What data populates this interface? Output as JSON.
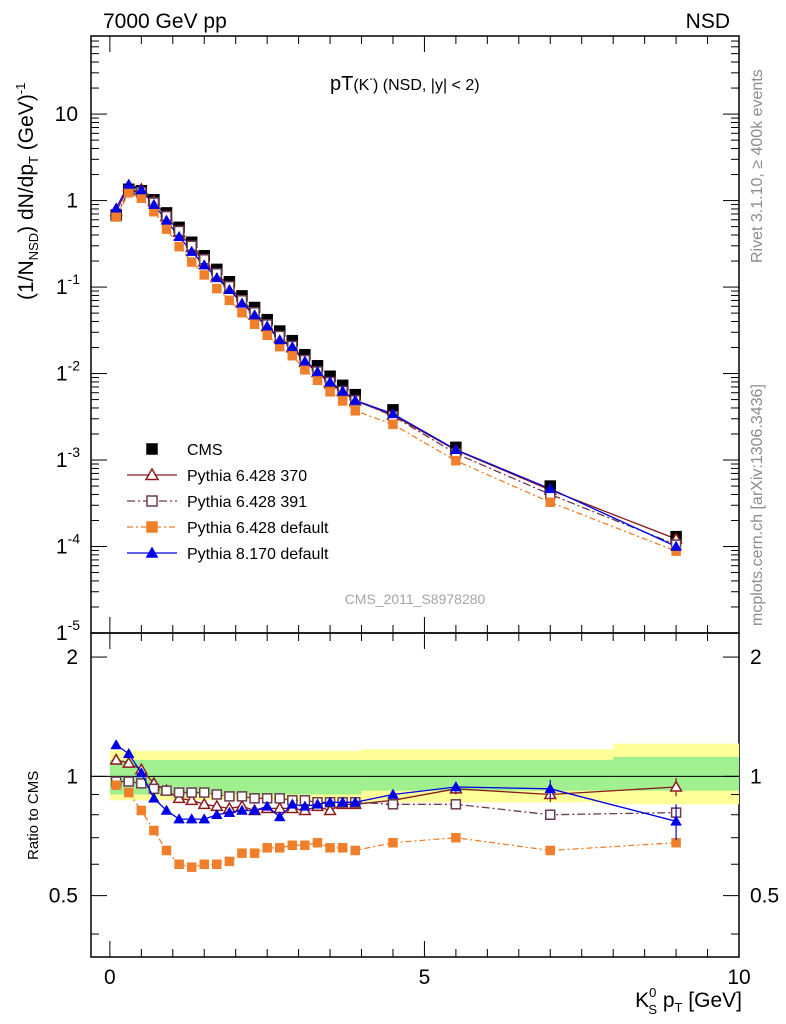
{
  "header": {
    "left": "7000 GeV pp",
    "right": "NSD"
  },
  "side_text": {
    "upper": "Rivet 3.1.10, ≥ 400k events",
    "lower": "mcplots.cern.ch [arXiv:1306.3436]"
  },
  "chart_data": {
    "type": "scatter",
    "title": "pT(K¯) (NSD, |y| < 2)",
    "title_parts": {
      "main": "pT",
      "paren": "(K",
      "sup": "-",
      "close": ")",
      "rest": " (NSD, |y| < 2)"
    },
    "watermark": "CMS_2011_S8978280",
    "xlabel": "K_S^0 p_T [GeV]",
    "xlabel_parts": {
      "k": "K",
      "sup": "0",
      "sub": "S",
      "p": " p",
      "psub": "T",
      "unit": " [GeV]"
    },
    "ylabel_main": "(1/N_NSD) dN/dp_T (GeV)^-1",
    "ylabel_ratio": "Ratio to CMS",
    "xlim": [
      -0.3,
      10
    ],
    "ylim_main": [
      1e-05,
      80
    ],
    "ylim_ratio": [
      0.35,
      2.3
    ],
    "log_y_main": true,
    "xticks": [
      "0",
      "5",
      "10"
    ],
    "yticks_main": [
      {
        "m": "1",
        "e": "-5"
      },
      {
        "m": "1",
        "e": "-4"
      },
      {
        "m": "1",
        "e": "-3"
      },
      {
        "m": "1",
        "e": "-2"
      },
      {
        "m": "1",
        "e": "-1"
      },
      {
        "m": "1",
        "e": ""
      },
      {
        "m": "10",
        "e": ""
      }
    ],
    "yticks_ratio": [
      "0.5",
      "1",
      "2"
    ],
    "x": [
      0.1,
      0.3,
      0.5,
      0.7,
      0.9,
      1.1,
      1.3,
      1.5,
      1.7,
      1.9,
      2.1,
      2.3,
      2.5,
      2.7,
      2.9,
      3.1,
      3.3,
      3.5,
      3.7,
      3.9,
      4.5,
      5.5,
      7.0,
      9.0
    ],
    "cms": [
      0.68,
      1.35,
      1.3,
      1.02,
      0.72,
      0.49,
      0.33,
      0.23,
      0.16,
      0.115,
      0.079,
      0.058,
      0.042,
      0.031,
      0.024,
      0.0165,
      0.0123,
      0.0093,
      0.0073,
      0.0057,
      0.0038,
      0.0014,
      0.0005,
      0.00013
    ],
    "cms_band_inner": [
      {
        "x0": 0,
        "x1": 4,
        "lo": 0.9,
        "hi": 1.1
      },
      {
        "x0": 4,
        "x1": 8,
        "lo": 0.92,
        "hi": 1.1
      },
      {
        "x0": 8,
        "x1": 10,
        "lo": 0.92,
        "hi": 1.12
      }
    ],
    "cms_band_outer": [
      {
        "x0": 0,
        "x1": 4,
        "lo": 0.87,
        "hi": 1.16
      },
      {
        "x0": 4,
        "x1": 8,
        "lo": 0.86,
        "hi": 1.17
      },
      {
        "x0": 8,
        "x1": 10,
        "lo": 0.85,
        "hi": 1.21
      }
    ],
    "series": [
      {
        "name": "Pythia 6.428 370",
        "color": "#8b1a1a",
        "marker": "triangle-open",
        "dash": "",
        "ratio": [
          1.1,
          1.08,
          1.04,
          0.96,
          0.92,
          0.88,
          0.87,
          0.85,
          0.84,
          0.83,
          0.84,
          0.82,
          0.83,
          0.83,
          0.83,
          0.82,
          0.84,
          0.82,
          0.85,
          0.85,
          0.87,
          0.93,
          0.9,
          0.94
        ],
        "err": [
          0.02,
          0.01,
          0.01,
          0.01,
          0.01,
          0.01,
          0.01,
          0.01,
          0.01,
          0.01,
          0.01,
          0.01,
          0.01,
          0.01,
          0.01,
          0.01,
          0.01,
          0.01,
          0.01,
          0.01,
          0.02,
          0.03,
          0.04,
          0.05
        ]
      },
      {
        "name": "Pythia 6.428 391",
        "color": "#6b3a52",
        "marker": "square-open",
        "dash": "8,3,2,3",
        "ratio": [
          0.97,
          0.97,
          0.96,
          0.93,
          0.92,
          0.91,
          0.91,
          0.91,
          0.9,
          0.89,
          0.89,
          0.88,
          0.88,
          0.88,
          0.87,
          0.87,
          0.86,
          0.86,
          0.86,
          0.86,
          0.85,
          0.85,
          0.8,
          0.81
        ],
        "err": [
          0.01,
          0.01,
          0.01,
          0.01,
          0.01,
          0.01,
          0.01,
          0.01,
          0.01,
          0.01,
          0.01,
          0.01,
          0.01,
          0.01,
          0.01,
          0.01,
          0.01,
          0.01,
          0.01,
          0.01,
          0.02,
          0.02,
          0.02,
          0.03
        ]
      },
      {
        "name": "Pythia 6.428 default",
        "color": "#f07f2c",
        "marker": "square-filled",
        "dash": "6,3,2,3",
        "ratio": [
          0.95,
          0.91,
          0.82,
          0.73,
          0.65,
          0.6,
          0.59,
          0.6,
          0.6,
          0.61,
          0.64,
          0.64,
          0.66,
          0.66,
          0.67,
          0.67,
          0.68,
          0.66,
          0.66,
          0.65,
          0.68,
          0.7,
          0.65,
          0.68
        ]
      },
      {
        "name": "Pythia 8.170 default",
        "color": "#0000e6",
        "marker": "triangle-filled",
        "dash": "",
        "ratio": [
          1.2,
          1.14,
          1.02,
          0.88,
          0.82,
          0.78,
          0.78,
          0.78,
          0.8,
          0.81,
          0.82,
          0.82,
          0.84,
          0.79,
          0.85,
          0.84,
          0.85,
          0.86,
          0.86,
          0.86,
          0.9,
          0.94,
          0.93,
          0.77
        ],
        "err": [
          0.01,
          0.01,
          0.01,
          0.01,
          0.01,
          0.01,
          0.01,
          0.01,
          0.01,
          0.01,
          0.01,
          0.01,
          0.01,
          0.01,
          0.01,
          0.01,
          0.02,
          0.02,
          0.02,
          0.02,
          0.02,
          0.03,
          0.05,
          0.08
        ]
      }
    ],
    "legend": {
      "position": "lower-left",
      "entries": [
        "CMS",
        "Pythia 6.428 370",
        "Pythia 6.428 391",
        "Pythia 6.428 default",
        "Pythia 8.170 default"
      ]
    },
    "colors": {
      "cms": "#000000",
      "band_inner": "#a0f090",
      "band_outer": "#ffff99"
    }
  }
}
